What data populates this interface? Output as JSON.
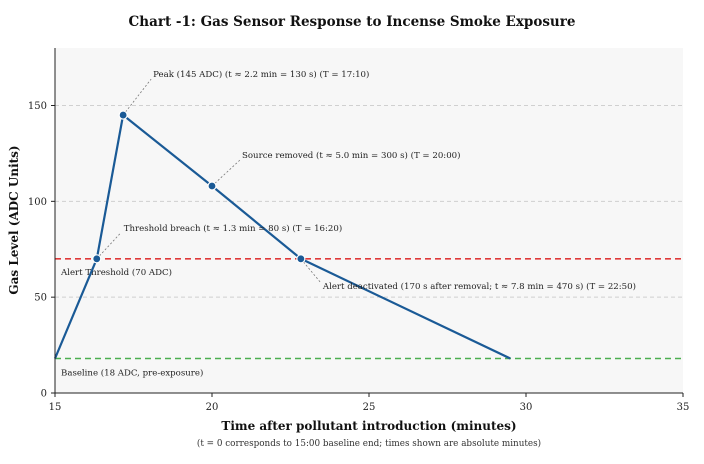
{
  "chart_data": {
    "type": "line",
    "title": "Chart -1: Gas Sensor Response to Incense Smoke Exposure",
    "xlabel": "Time after pollutant introduction (minutes)",
    "ylabel": "Gas Level (ADC Units)",
    "caption": "(t = 0 corresponds to 15:00 baseline end; times shown are absolute minutes)",
    "xlim": [
      15,
      35
    ],
    "ylim": [
      0,
      180
    ],
    "xticks": [
      15,
      20,
      25,
      30,
      35
    ],
    "yticks": [
      0,
      50,
      100,
      150
    ],
    "grid": "horizontal",
    "series": [
      {
        "color": "#1a5a96",
        "x": [
          15,
          16.33,
          17.17,
          20,
          22.83,
          29.5
        ],
        "y": [
          18,
          70,
          145,
          108,
          70,
          18
        ]
      }
    ],
    "markers": [
      {
        "x": 16.33,
        "y": 70
      },
      {
        "x": 17.17,
        "y": 145
      },
      {
        "x": 20,
        "y": 108
      },
      {
        "x": 22.83,
        "y": 70
      }
    ],
    "reference_lines": [
      {
        "label": "Alert Threshold (70 ADC)",
        "y": 70,
        "color": "#e03a3a"
      },
      {
        "label": "Baseline (18 ADC, pre-exposure)",
        "y": 18,
        "color": "#4caf50"
      }
    ],
    "annotations": [
      {
        "text": "Peak (145 ADC) (t ≈ 2.2 min = 130 s) (T = 17:10)",
        "x": 17.17,
        "y": 145
      },
      {
        "text": "Source removed (t ≈ 5.0 min = 300 s) (T = 20:00)",
        "x": 20,
        "y": 108
      },
      {
        "text": "Threshold breach (t ≈ 1.3 min = 80 s) (T = 16:20)",
        "x": 16.33,
        "y": 70
      },
      {
        "text": "Alert deactivated (170 s after removal; t ≈ 7.8 min = 470 s) (T = 22:50)",
        "x": 22.83,
        "y": 70
      }
    ],
    "colors": {
      "line": "#1a5a96",
      "marker_stroke": "#ffffff",
      "plot_background": "#f7f7f7",
      "grid": "#d0d0d0"
    }
  }
}
